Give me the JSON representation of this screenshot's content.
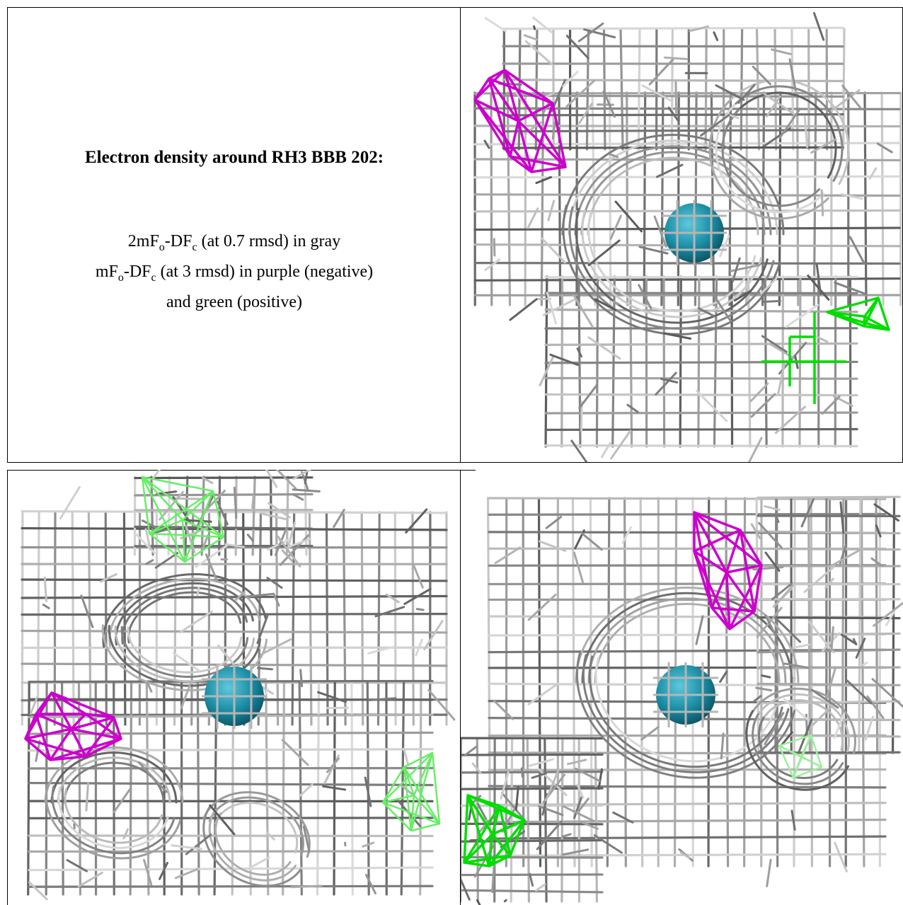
{
  "caption": {
    "title": "Electron density around RH3 BBB 202:",
    "line1_prefix": "2mF",
    "line1_sub1": "o",
    "line1_mid": "-DF",
    "line1_sub2": "c",
    "line1_suffix": " (at 0.7 rmsd) in gray",
    "line2_prefix": "mF",
    "line2_sub1": "o",
    "line2_mid": "-DF",
    "line2_sub2": "c",
    "line2_suffix": " (at 3 rmsd) in purple (negative)",
    "line3": "and green (positive)"
  },
  "panels": [
    {
      "name": "top-right",
      "atom_color": "#1b8fa6",
      "negative_color": "#cc00cc",
      "positive_color": "#00dd00"
    },
    {
      "name": "bottom-left",
      "atom_color": "#1b8fa6",
      "negative_color": "#cc00cc",
      "positive_color": "#66ee66"
    },
    {
      "name": "bottom-right",
      "atom_color": "#1b8fa6",
      "negative_color": "#cc00cc",
      "positive_color": "#00dd00"
    }
  ],
  "colors": {
    "mesh_gray": "#8a8a8a",
    "mesh_light": "#c8c8c8",
    "mesh_dark": "#4a4a4a"
  }
}
